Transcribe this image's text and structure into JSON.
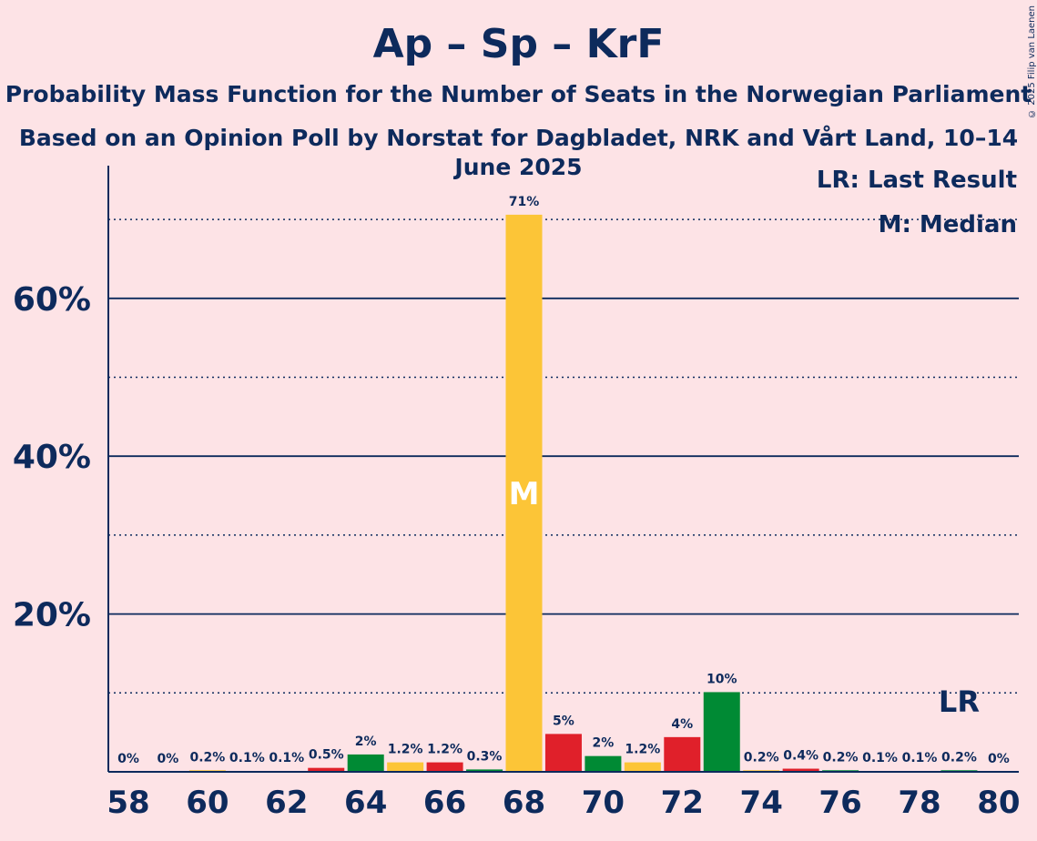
{
  "title": "Ap – Sp – KrF",
  "subtitle": "Probability Mass Function for the Number of Seats in the Norwegian Parliament",
  "subtitle2": "Based on an Opinion Poll by Norstat for Dagbladet, NRK and Vårt Land, 10–14 June 2025",
  "copyright": "© 2025 Filip van Laenen",
  "legend": {
    "last_result": "LR: Last Result",
    "median": "M: Median"
  },
  "markers": {
    "median_label": "M",
    "median_seat": 68,
    "last_result_label": "LR",
    "last_result_seat": 79
  },
  "colors": {
    "background": "#fde3e6",
    "text": "#0d2a5c",
    "ap_red": "#e0202a",
    "sp_green": "#008a34",
    "krf_yellow": "#fcc537"
  },
  "chart_data": {
    "type": "bar",
    "x": [
      58,
      59,
      60,
      61,
      62,
      63,
      64,
      65,
      66,
      67,
      68,
      69,
      70,
      71,
      72,
      73,
      74,
      75,
      76,
      77,
      78,
      79,
      80
    ],
    "values": [
      0,
      0,
      0.2,
      0.1,
      0.1,
      0.5,
      2.2,
      1.2,
      1.2,
      0.3,
      70.6,
      4.8,
      2.0,
      1.2,
      4.4,
      10.1,
      0.2,
      0.4,
      0.2,
      0.1,
      0.1,
      0.2,
      0
    ],
    "data_labels": [
      "0%",
      "0%",
      "0.2%",
      "0.1%",
      "0.1%",
      "0.5%",
      "2%",
      "1.2%",
      "1.2%",
      "0.3%",
      "71%",
      "5%",
      "2%",
      "1.2%",
      "4%",
      "10%",
      "0.2%",
      "0.4%",
      "0.2%",
      "0.1%",
      "0.1%",
      "0.2%",
      "0%"
    ],
    "bar_colors": [
      "ap_red",
      "sp_green",
      "krf_yellow",
      "ap_red",
      "sp_green",
      "ap_red",
      "sp_green",
      "krf_yellow",
      "ap_red",
      "sp_green",
      "krf_yellow",
      "ap_red",
      "sp_green",
      "krf_yellow",
      "ap_red",
      "sp_green",
      "krf_yellow",
      "ap_red",
      "sp_green",
      "krf_yellow",
      "ap_red",
      "sp_green",
      "krf_yellow"
    ],
    "x_tick_labels": [
      "58",
      "60",
      "62",
      "64",
      "66",
      "68",
      "70",
      "72",
      "74",
      "76",
      "78",
      "80"
    ],
    "y_tick_labels": [
      "20%",
      "40%",
      "60%"
    ],
    "y_major_ticks": [
      20,
      40,
      60
    ],
    "y_minor_ticks": [
      10,
      30,
      50,
      70
    ],
    "ylim": [
      0,
      77
    ],
    "grid": true,
    "legend_position": "top-right"
  }
}
